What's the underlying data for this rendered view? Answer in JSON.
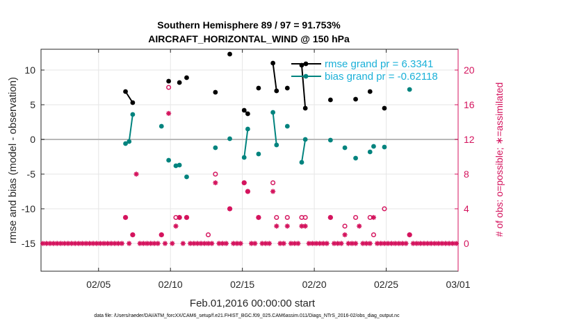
{
  "chart_data": {
    "type": "line",
    "title": "Southern Hemisphere 89 / 97 = 91.753%",
    "subtitle": "AIRCRAFT_HORIZONTAL_WIND @ 150 hPa",
    "xlabel": "Feb.01,2016 00:00:00 start",
    "ylabel": "rmse and bias (model - observation)",
    "y2label": "# of obs: o=possible; ∗=assimilated",
    "footer": "data file: /Users/raeder/DAI/ATM_forcXX/CAM6_setup/f.e21.FHIST_BGC.f09_025.CAM6assim.011/Diags_NTrS_2016-02/obs_diag_output.nc",
    "xlim": [
      1,
      30
    ],
    "ylim": [
      -19,
      13
    ],
    "y2lim": [
      -3.2,
      22.4
    ],
    "x_ticks": [
      5,
      10,
      15,
      20,
      25,
      30
    ],
    "x_tick_labels": [
      "02/05",
      "02/10",
      "02/15",
      "02/20",
      "02/25",
      "03/01"
    ],
    "y_ticks": [
      10,
      5,
      0,
      -5,
      -10,
      -15
    ],
    "y_tick_labels": [
      "10",
      "5",
      "0",
      "-5",
      "-10",
      "-15"
    ],
    "y2_ticks": [
      20,
      16,
      12,
      8,
      4,
      0
    ],
    "y2_tick_labels": [
      "20",
      "16",
      "12",
      "8",
      "4",
      "0"
    ],
    "zero_line": 0,
    "grid": true,
    "legend_position": "top-right",
    "series": [
      {
        "name": "rmse grand pr = 6.3341",
        "color": "#000000",
        "marker": "filled-circle",
        "axis": "left",
        "x": [
          6.875,
          7.375,
          9.875,
          10.625,
          11.125,
          13.125,
          14.125,
          15.125,
          15.375,
          16.125,
          17.125,
          17.375,
          18.125,
          19.125,
          19.375,
          21.125,
          22.875,
          23.875,
          24.875
        ],
        "y": [
          6.9,
          5.3,
          8.4,
          8.2,
          8.9,
          6.8,
          12.3,
          4.2,
          3.7,
          7.4,
          11.0,
          7.0,
          7.4,
          10.7,
          4.5,
          5.7,
          5.8,
          6.9,
          4.5
        ],
        "segments": [
          [
            0,
            1
          ],
          [
            7,
            8
          ],
          [
            10,
            11
          ],
          [
            13,
            14
          ]
        ]
      },
      {
        "name": "bias grand pr = -0.62118",
        "color": "#00837e",
        "marker": "filled-circle",
        "axis": "left",
        "x": [
          6.875,
          7.125,
          7.375,
          9.375,
          9.875,
          10.375,
          10.625,
          11.125,
          13.125,
          14.125,
          15.125,
          15.375,
          16.125,
          17.125,
          17.375,
          18.125,
          19.125,
          19.375,
          21.125,
          22.125,
          22.875,
          23.875,
          24.125,
          24.875,
          26.625
        ],
        "y": [
          -0.6,
          -0.3,
          3.6,
          1.9,
          -3.0,
          -3.8,
          -3.7,
          -5.4,
          -1.2,
          0.1,
          -2.6,
          1.5,
          -2.1,
          3.9,
          -0.8,
          1.9,
          -3.3,
          0.0,
          -0.1,
          -1.2,
          -2.7,
          -1.8,
          -1.0,
          -1.1,
          7.2
        ],
        "segments": [
          [
            0,
            1
          ],
          [
            1,
            2
          ],
          [
            10,
            11
          ],
          [
            13,
            14
          ],
          [
            16,
            17
          ]
        ]
      },
      {
        "name": "possible",
        "color": "#d4135d",
        "marker": "open-circle",
        "axis": "right",
        "x": [
          6.875,
          7.375,
          9.375,
          9.875,
          10.375,
          10.625,
          11.125,
          12.625,
          13.125,
          14.125,
          15.125,
          15.375,
          16.125,
          17.125,
          17.375,
          18.125,
          19.125,
          19.375,
          21.125,
          22.125,
          22.875,
          23.875,
          24.125,
          24.875,
          26.625
        ],
        "y": [
          3,
          1,
          1,
          18,
          3,
          3,
          3,
          1,
          8,
          4,
          7,
          6,
          3,
          7,
          3,
          3,
          3,
          3,
          3,
          2,
          3,
          3,
          1,
          4,
          1
        ]
      },
      {
        "name": "assimilated",
        "color": "#d4135d",
        "marker": "asterisk",
        "axis": "right",
        "x": [
          1.125,
          1.375,
          1.625,
          1.875,
          2.125,
          2.375,
          2.625,
          2.875,
          3.125,
          3.375,
          3.625,
          3.875,
          4.125,
          4.375,
          4.625,
          4.875,
          5.125,
          5.375,
          5.625,
          5.875,
          6.125,
          6.375,
          6.625,
          6.875,
          7.125,
          7.375,
          7.625,
          7.875,
          8.125,
          8.375,
          8.625,
          8.875,
          9.125,
          9.375,
          9.625,
          9.875,
          10.125,
          10.375,
          10.625,
          10.875,
          11.125,
          11.375,
          11.625,
          11.875,
          12.125,
          12.375,
          12.625,
          12.875,
          13.125,
          13.375,
          13.625,
          13.875,
          14.125,
          14.375,
          14.625,
          14.875,
          15.125,
          15.375,
          15.625,
          15.875,
          16.125,
          16.375,
          16.625,
          16.875,
          17.125,
          17.375,
          17.625,
          17.875,
          18.125,
          18.375,
          18.625,
          18.875,
          19.125,
          19.375,
          19.625,
          19.875,
          20.125,
          20.375,
          20.625,
          20.875,
          21.125,
          21.375,
          21.625,
          21.875,
          22.125,
          22.375,
          22.625,
          22.875,
          23.125,
          23.375,
          23.625,
          23.875,
          24.125,
          24.375,
          24.625,
          24.875,
          25.125,
          25.375,
          25.625,
          25.875,
          26.125,
          26.375,
          26.625,
          26.875,
          27.125,
          27.375,
          27.625,
          27.875,
          28.125,
          28.375,
          28.625,
          28.875,
          29.125,
          29.375,
          29.625,
          29.875
        ],
        "y": [
          0,
          0,
          0,
          0,
          0,
          0,
          0,
          0,
          0,
          0,
          0,
          0,
          0,
          0,
          0,
          0,
          0,
          0,
          0,
          0,
          0,
          0,
          0,
          3,
          0,
          1,
          8,
          0,
          0,
          0,
          0,
          0,
          0,
          1,
          0,
          15,
          0,
          2,
          3,
          0,
          3,
          0,
          0,
          0,
          0,
          0,
          0,
          0,
          7,
          0,
          0,
          0,
          4,
          0,
          0,
          0,
          7,
          6,
          0,
          0,
          3,
          0,
          0,
          0,
          6,
          2,
          0,
          0,
          2,
          0,
          0,
          0,
          2,
          2,
          0,
          0,
          0,
          0,
          0,
          0,
          3,
          0,
          0,
          0,
          1,
          0,
          0,
          0,
          2,
          0,
          0,
          0,
          3,
          0,
          0,
          0,
          0,
          0,
          0,
          0,
          0,
          0,
          1,
          0,
          0,
          0,
          0,
          0,
          0,
          0,
          0,
          0,
          0,
          0,
          0,
          0
        ]
      }
    ]
  }
}
